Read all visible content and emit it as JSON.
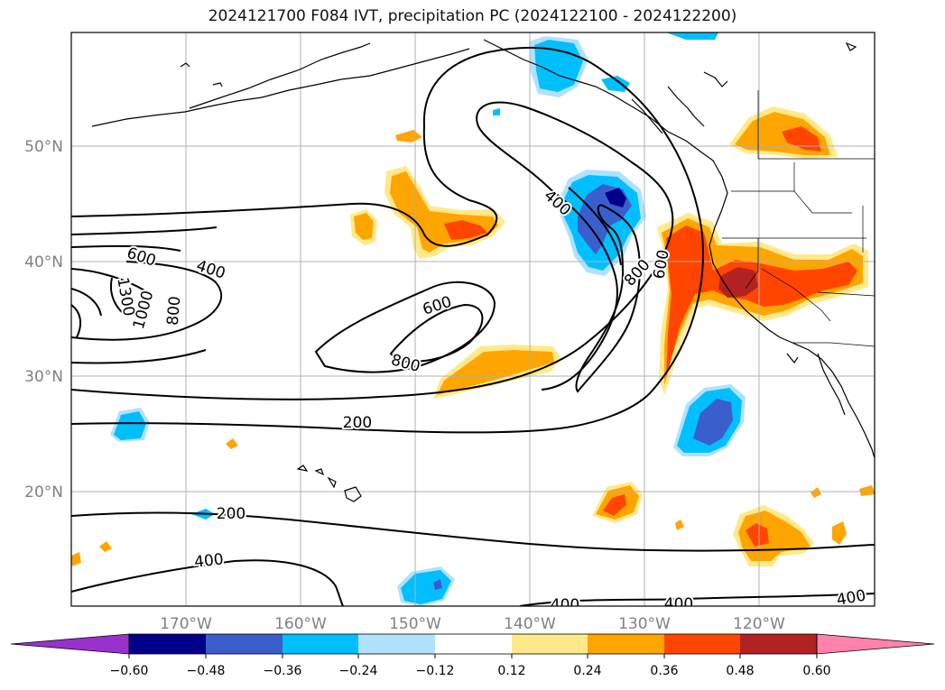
{
  "title": "2024121700 F084 IVT, precipitation PC (2024122100 - 2024122200)",
  "map": {
    "lat_labels": [
      "50°N",
      "40°N",
      "30°N",
      "20°N"
    ],
    "lon_labels": [
      "170°W",
      "160°W",
      "150°W",
      "140°W",
      "130°W",
      "120°W"
    ],
    "colors": {
      "pos_012": "#ffe98a",
      "pos_024": "#ffa500",
      "pos_036": "#ff4500",
      "pos_048": "#b22222",
      "neg_024": "#00bfff",
      "neg_036": "#3a5fcd",
      "neg_048": "#00008b"
    },
    "contour_labels": [
      "1300",
      "1000",
      "800",
      "600",
      "400",
      "600",
      "800",
      "400",
      "800",
      "600",
      "200",
      "200",
      "400",
      "400",
      "400",
      "400"
    ]
  },
  "colorbar": {
    "ticks": [
      "−0.60",
      "−0.48",
      "−0.36",
      "−0.24",
      "−0.12",
      "0.12",
      "0.24",
      "0.36",
      "0.48",
      "0.60"
    ],
    "colors": [
      "#9932cc",
      "#00008b",
      "#3a5fcd",
      "#00bfff",
      "#b0e2ff",
      "#ffffff",
      "#ffe98a",
      "#ffa500",
      "#ff4500",
      "#b22222",
      "#ff82ab"
    ]
  }
}
